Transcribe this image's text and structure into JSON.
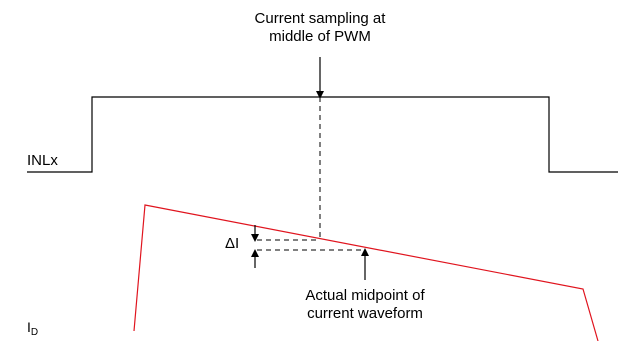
{
  "annotations": {
    "sampling_line1": "Current sampling at",
    "sampling_line2": "middle of PWM",
    "midpoint_line1": "Actual midpoint of",
    "midpoint_line2": "current waveform",
    "delta": "ΔI"
  },
  "signals": {
    "pwm_label": "INLx",
    "current_label_main": "I",
    "current_label_sub": "D"
  },
  "colors": {
    "pwm_trace": "#000000",
    "current_trace": "#e0141e",
    "annotation": "#000000"
  }
}
